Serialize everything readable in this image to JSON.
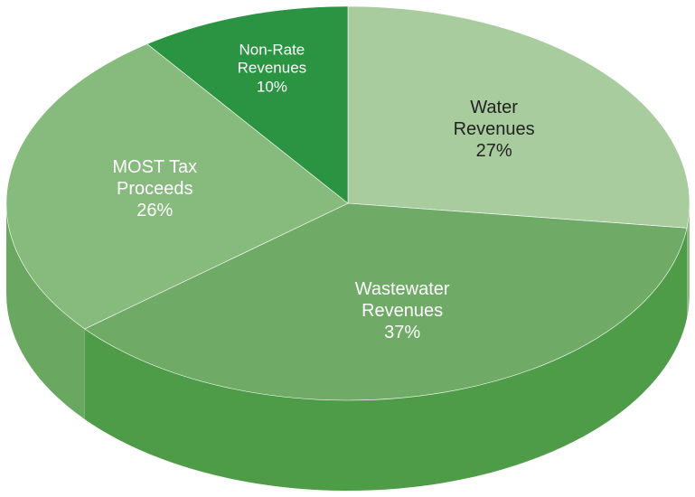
{
  "chart_data": {
    "type": "pie",
    "categories": [
      "Water Revenues",
      "Wastewater Revenues",
      "MOST Tax Proceeds",
      "Non-Rate Revenues"
    ],
    "values": [
      27,
      37,
      26,
      10
    ],
    "value_labels": [
      "27%",
      "37%",
      "26%",
      "10%"
    ],
    "colors": [
      "#a9cc9f",
      "#6fab67",
      "#87ba7d",
      "#2a9443"
    ],
    "side_colors": [
      "#8fbb85",
      "#4f9c48",
      "#6aa862",
      "#1f7d36"
    ],
    "label_colors": [
      "#222222",
      "#ffffff",
      "#ffffff",
      "#ffffff"
    ]
  }
}
